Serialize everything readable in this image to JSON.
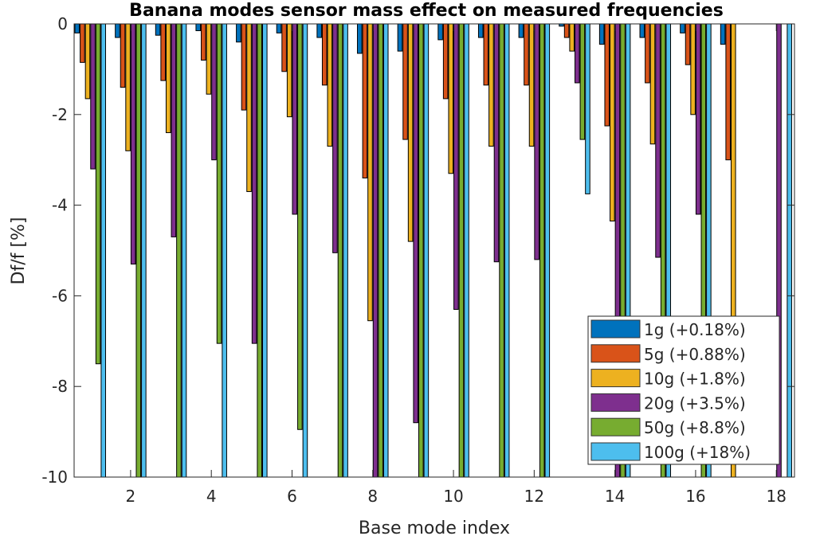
{
  "chart_data": {
    "type": "bar",
    "title": "Banana modes sensor mass effect on measured frequencies",
    "xlabel": "Base mode index",
    "ylabel": "Df/f [%]",
    "ylim": [
      -10,
      0
    ],
    "xlim": [
      0.6,
      18.45
    ],
    "yticks": [
      0,
      -2,
      -4,
      -6,
      -8,
      -10
    ],
    "xticks": [
      2,
      4,
      6,
      8,
      10,
      12,
      14,
      16,
      18
    ],
    "grid": false,
    "legend_position": "bottom-right",
    "categories": [
      1,
      2,
      3,
      4,
      5,
      6,
      7,
      8,
      9,
      10,
      11,
      12,
      13,
      14,
      15,
      16,
      17,
      18
    ],
    "series": [
      {
        "name": "1g (+0.18%)",
        "color": "#0072BD",
        "values": [
          -0.2,
          -0.3,
          -0.25,
          -0.15,
          -0.4,
          -0.2,
          -0.3,
          -0.65,
          -0.6,
          -0.35,
          -0.3,
          -0.3,
          -0.05,
          -0.45,
          -0.3,
          -0.2,
          -0.45,
          0
        ]
      },
      {
        "name": "5g (+0.88%)",
        "color": "#D95319",
        "values": [
          -0.85,
          -1.4,
          -1.25,
          -0.8,
          -1.9,
          -1.05,
          -1.35,
          -3.4,
          -2.55,
          -1.65,
          -1.35,
          -1.35,
          -0.3,
          -2.25,
          -1.3,
          -0.9,
          -3.0,
          0
        ]
      },
      {
        "name": "10g (+1.8%)",
        "color": "#EDB120",
        "values": [
          -1.65,
          -2.8,
          -2.4,
          -1.55,
          -3.7,
          -2.05,
          -2.7,
          -6.55,
          -4.8,
          -3.3,
          -2.7,
          -2.7,
          -0.6,
          -4.35,
          -2.65,
          -2.0,
          -11,
          0
        ]
      },
      {
        "name": "20g (+3.5%)",
        "color": "#7E2F8E",
        "values": [
          -3.2,
          -5.3,
          -4.7,
          -3.0,
          -7.05,
          -4.2,
          -5.05,
          -11,
          -8.8,
          -6.3,
          -5.25,
          -5.2,
          -1.3,
          -11,
          -5.15,
          -4.2,
          0,
          -11
        ]
      },
      {
        "name": "50g (+8.8%)",
        "color": "#77AC30",
        "values": [
          -7.5,
          -11,
          -11,
          -7.05,
          -11,
          -8.95,
          -11,
          -11,
          -11,
          -11,
          -11,
          -11,
          -2.55,
          -11,
          -11,
          -11,
          0,
          0
        ]
      },
      {
        "name": "100g (+18%)",
        "color": "#4DBEEE",
        "values": [
          -11,
          -11,
          -11,
          -11,
          -11,
          -11,
          -11,
          -11,
          -11,
          -11,
          -11,
          -11,
          -3.75,
          -11,
          -11,
          -11,
          0,
          -11
        ]
      }
    ]
  }
}
